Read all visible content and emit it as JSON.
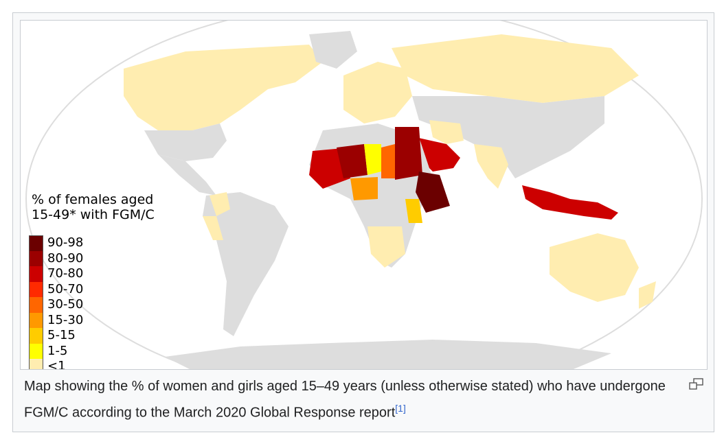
{
  "legend": {
    "title": "% of females aged\n15-49* with FGM/C",
    "items": [
      {
        "label": "90-98",
        "color": "#6b0000"
      },
      {
        "label": "80-90",
        "color": "#9b0000"
      },
      {
        "label": "70-80",
        "color": "#cc0000"
      },
      {
        "label": "50-70",
        "color": "#ff2a00"
      },
      {
        "label": "30-50",
        "color": "#ff6600"
      },
      {
        "label": "15-30",
        "color": "#ff9900"
      },
      {
        "label": "5-15",
        "color": "#ffcc00"
      },
      {
        "label": "1-5",
        "color": "#ffff00"
      },
      {
        "label": "<1",
        "color": "#ffedb0"
      }
    ]
  },
  "colors": {
    "no_data": "#dddddd",
    "ocean": "#ffffff"
  },
  "caption": {
    "text": "Map showing the % of women and girls aged 15–49 years (unless otherwise stated) who have undergone FGM/C according to the March 2020 Global Response report",
    "ref": "[1]"
  },
  "icons": {
    "magnify": "magnify-icon"
  }
}
